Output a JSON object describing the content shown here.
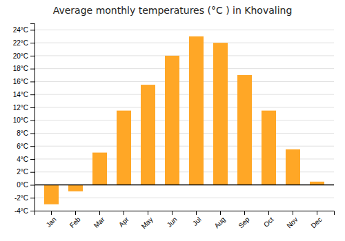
{
  "chart_data": {
    "type": "bar",
    "title": "Average monthly temperatures (°C ) in Khovaling",
    "categories": [
      "Jan",
      "Feb",
      "Mar",
      "Apr",
      "May",
      "Jun",
      "Jul",
      "Aug",
      "Sep",
      "Oct",
      "Nov",
      "Dec"
    ],
    "values": [
      -3.0,
      -1.0,
      5.0,
      11.5,
      15.5,
      20.0,
      23.0,
      22.0,
      17.0,
      11.5,
      5.5,
      0.5
    ],
    "color": "#FFA726",
    "ylim": [
      -4,
      25
    ],
    "yticks": [
      {
        "value": -4,
        "label": "-4°C"
      },
      {
        "value": -2,
        "label": "-2°C"
      },
      {
        "value": 0,
        "label": "0°C"
      },
      {
        "value": 2,
        "label": "2°C"
      },
      {
        "value": 4,
        "label": "4°C"
      },
      {
        "value": 6,
        "label": "6°C"
      },
      {
        "value": 8,
        "label": "8°C"
      },
      {
        "value": 10,
        "label": "10°C"
      },
      {
        "value": 12,
        "label": "12°C"
      },
      {
        "value": 14,
        "label": "14°C"
      },
      {
        "value": 16,
        "label": "16°C"
      },
      {
        "value": 18,
        "label": "18°C"
      },
      {
        "value": 20,
        "label": "20°C"
      },
      {
        "value": 22,
        "label": "22°C"
      },
      {
        "value": 24,
        "label": "24°C"
      }
    ],
    "grid": true
  }
}
